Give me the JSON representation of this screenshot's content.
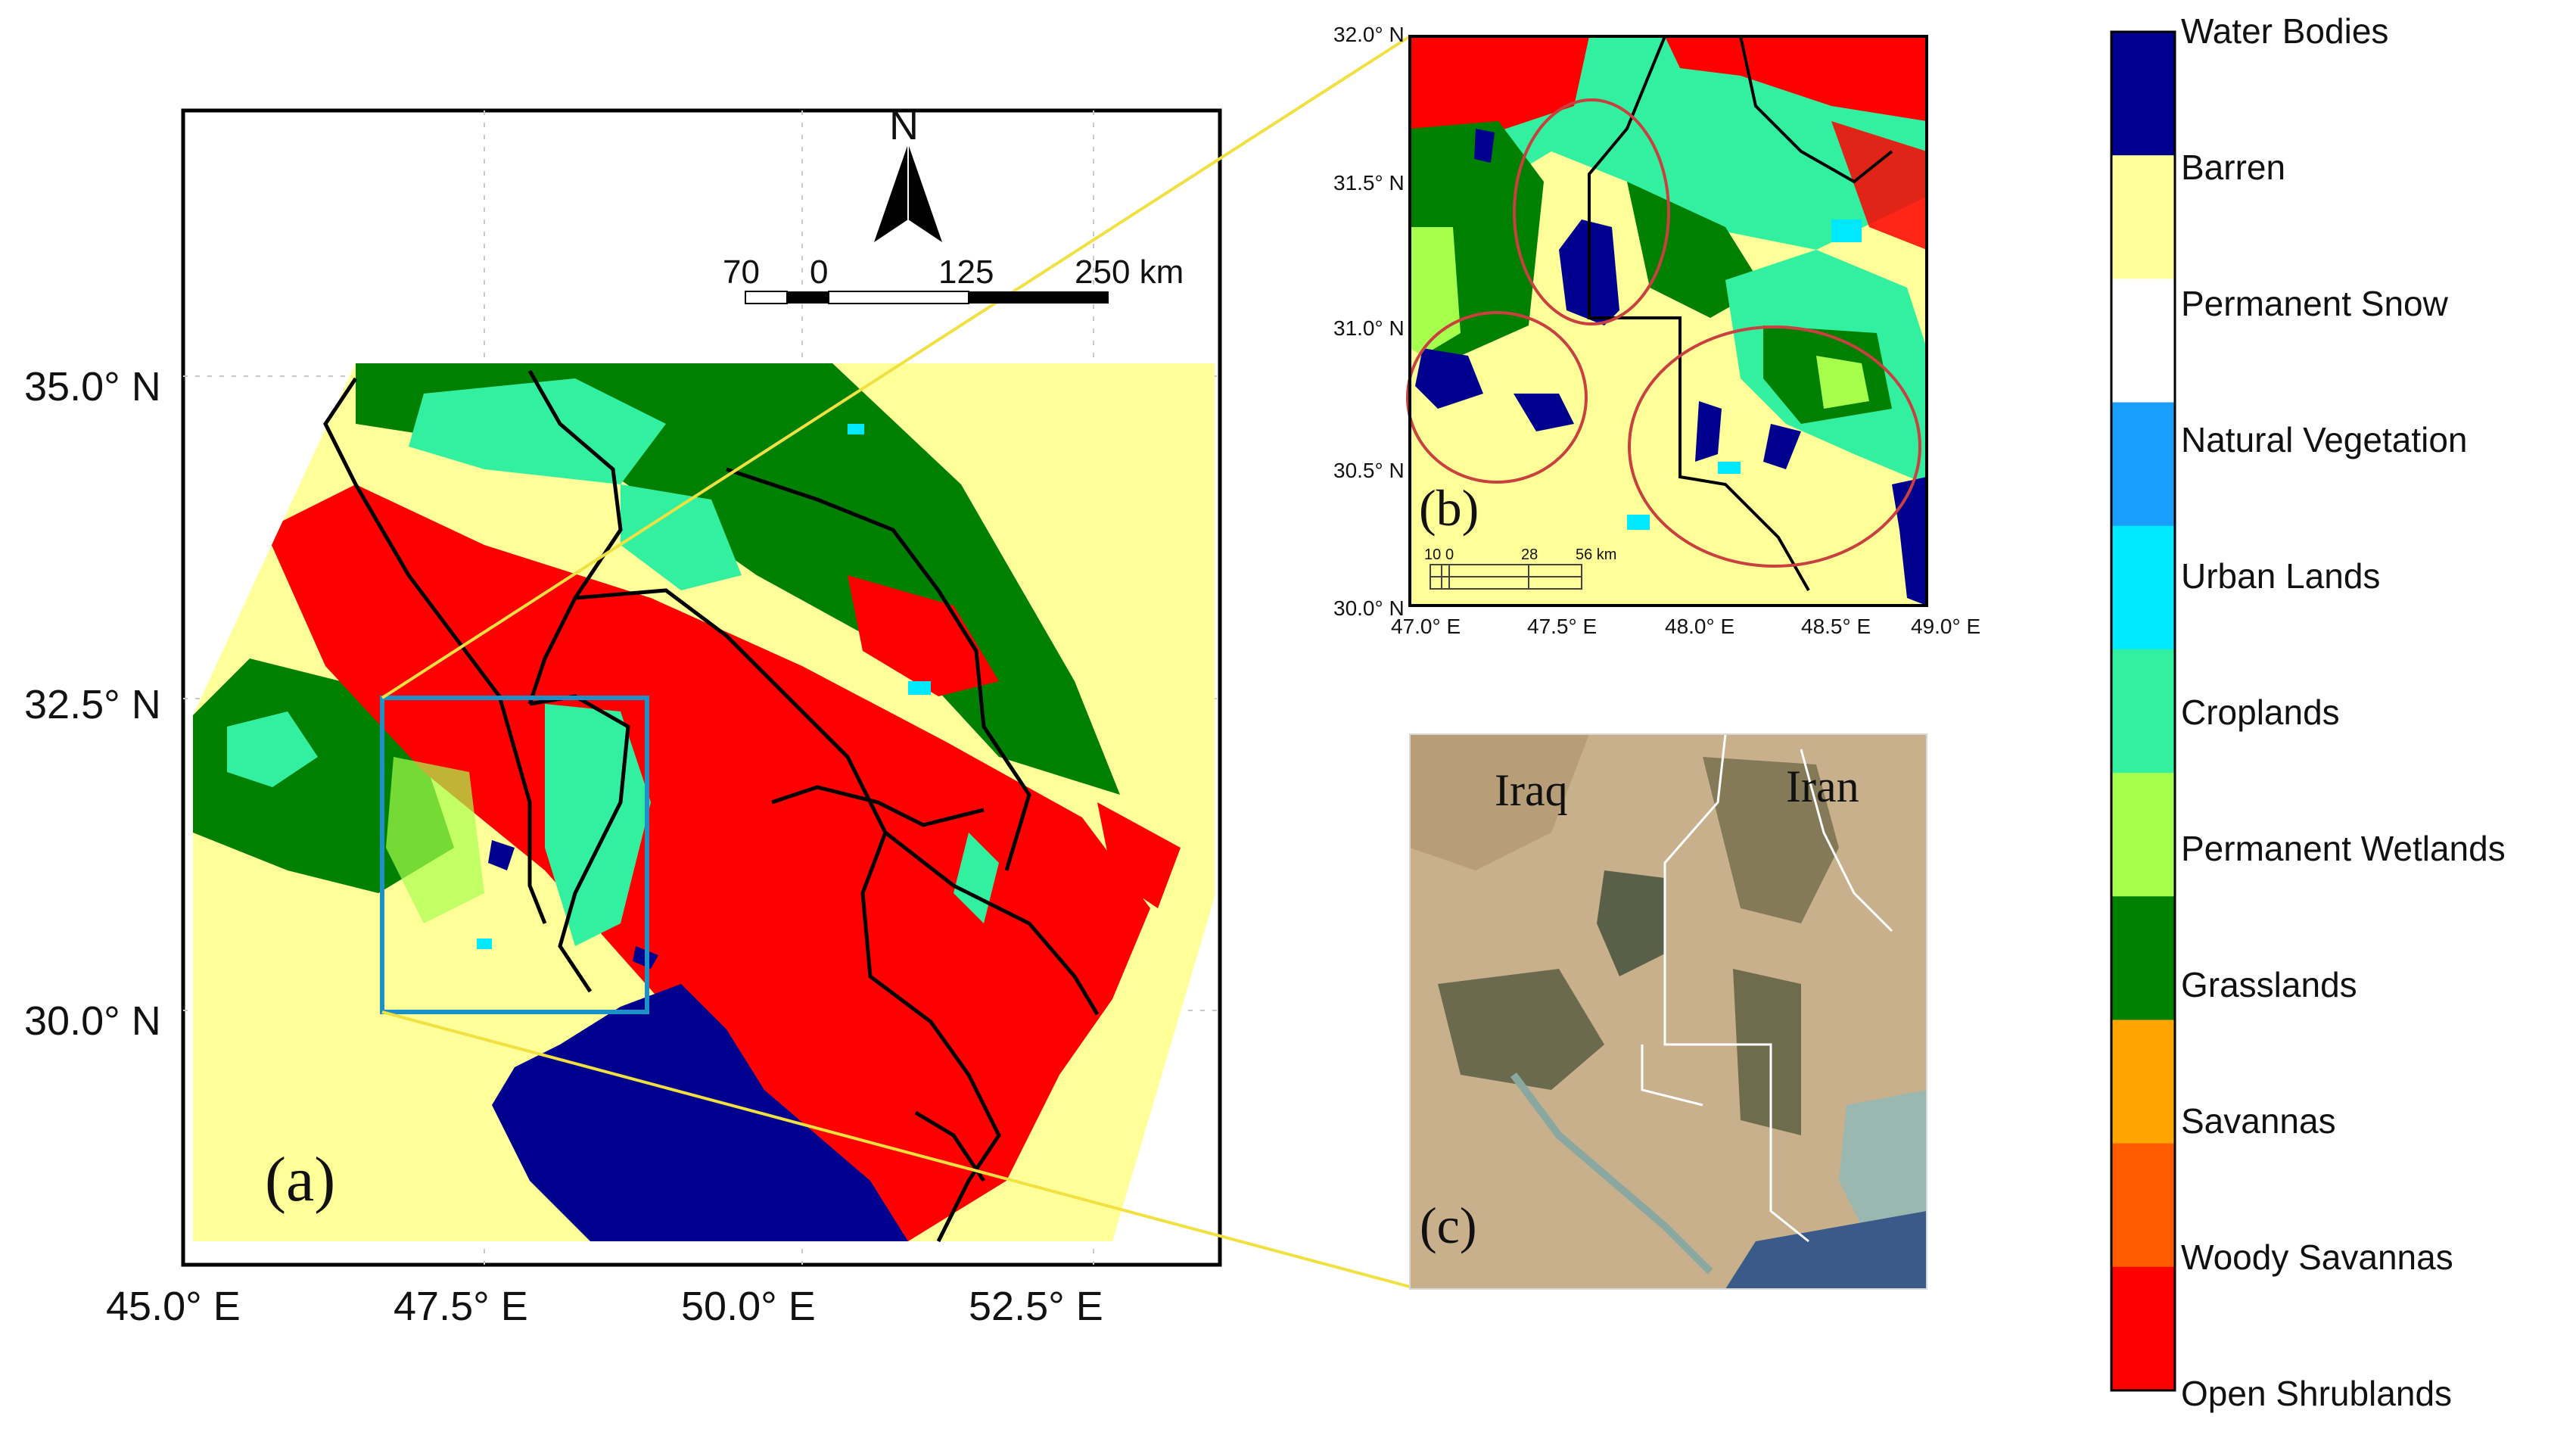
{
  "panel_a": {
    "label": "(a)",
    "lat_ticks": [
      "35.0° N",
      "32.5° N",
      "30.0° N"
    ],
    "lon_ticks": [
      "45.0° E",
      "47.5° E",
      "50.0° E",
      "52.5° E"
    ],
    "north_label": "N",
    "scale_labels": [
      "70",
      "0",
      "125",
      "250 km"
    ]
  },
  "panel_b": {
    "label": "(b)",
    "lat_ticks": [
      "32.0° N",
      "31.5° N",
      "31.0° N",
      "30.5° N",
      "30.0° N"
    ],
    "lon_ticks": [
      "47.0° E",
      "47.5° E",
      "48.0° E",
      "48.5° E",
      "49.0° E"
    ],
    "scale_labels": [
      "10",
      "0",
      "28",
      "56 km"
    ]
  },
  "panel_c": {
    "label": "(c)",
    "country_left": "Iraq",
    "country_right": "Iran"
  },
  "legend": {
    "items": [
      {
        "label": "Water Bodies",
        "color": "#00008f"
      },
      {
        "label": "Barren",
        "color": "#ffff99"
      },
      {
        "label": "Permanent Snow",
        "color": "#ffffff"
      },
      {
        "label": "Natural Vegetation",
        "color": "#1a9fff"
      },
      {
        "label": "Urban Lands",
        "color": "#00e8ff"
      },
      {
        "label": "Croplands",
        "color": "#33f0a0"
      },
      {
        "label": "Permanent Wetlands",
        "color": "#a6ff4d"
      },
      {
        "label": "Grasslands",
        "color": "#008000"
      },
      {
        "label": "Savannas",
        "color": "#ffa500"
      },
      {
        "label": "Woody Savannas",
        "color": "#ff5a00"
      },
      {
        "label": "Open Shrublands",
        "color": "#ff0000"
      }
    ]
  }
}
